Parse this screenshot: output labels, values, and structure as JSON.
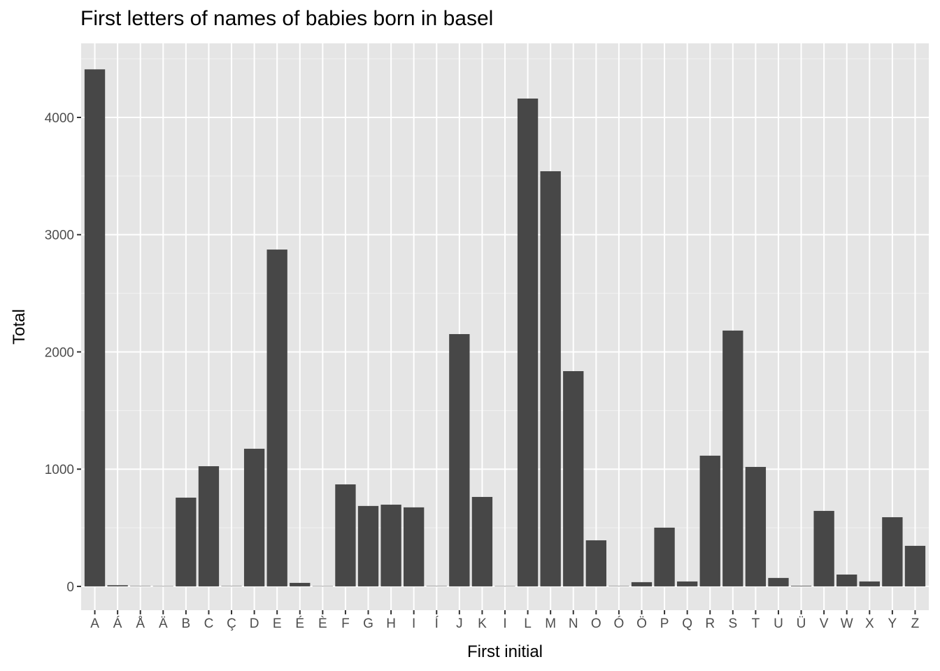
{
  "chart_data": {
    "type": "bar",
    "title": "First letters of names of babies born in basel",
    "xlabel": "First initial",
    "ylabel": "Total",
    "ylim": [
      -203,
      4632
    ],
    "yticks": [
      0,
      1000,
      2000,
      3000,
      4000
    ],
    "grid": true,
    "bar_color": "#474747",
    "panel_color": "#e5e5e5",
    "categories": [
      "A",
      "Á",
      "Å",
      "Ä",
      "B",
      "C",
      "Ç",
      "D",
      "E",
      "É",
      "È",
      "F",
      "G",
      "H",
      "I",
      "Í",
      "J",
      "K",
      "I",
      "L",
      "M",
      "N",
      "O",
      "Ó",
      "Ö",
      "P",
      "Q",
      "R",
      "S",
      "T",
      "U",
      "Ü",
      "V",
      "W",
      "X",
      "Y",
      "Z"
    ],
    "values": [
      4410,
      10,
      3,
      2,
      757,
      1025,
      3,
      1174,
      2873,
      30,
      2,
      870,
      686,
      697,
      674,
      3,
      2152,
      763,
      2,
      4161,
      3541,
      1836,
      393,
      3,
      36,
      501,
      42,
      1115,
      2182,
      1019,
      72,
      5,
      644,
      101,
      42,
      590,
      346
    ]
  }
}
